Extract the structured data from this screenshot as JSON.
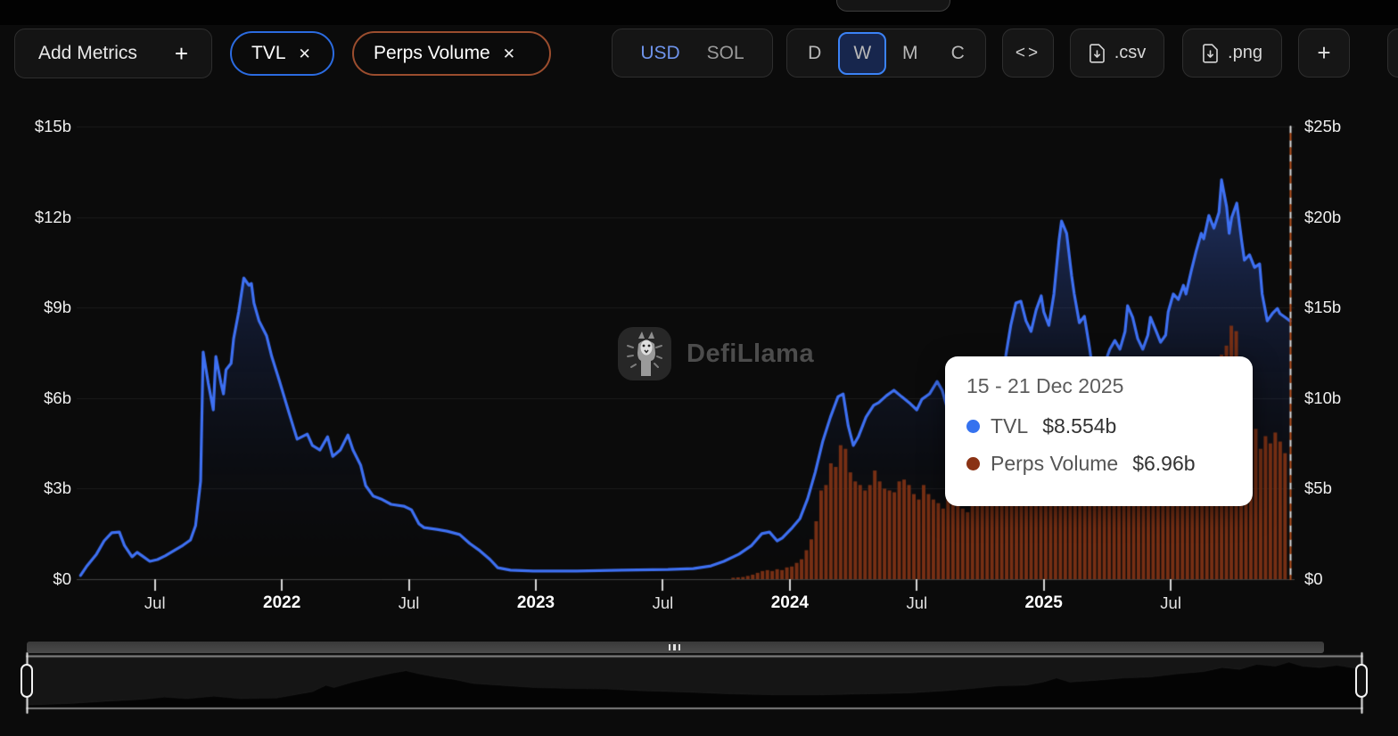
{
  "header": {
    "tab_notch": true
  },
  "toolbar": {
    "add_metrics": {
      "label": "Add Metrics",
      "plus": "+"
    },
    "metric_pills": [
      {
        "label": "TVL",
        "close": "✕",
        "color": "#2b6be0"
      },
      {
        "label": "Perps Volume",
        "close": "✕",
        "color": "#9b4d2e"
      }
    ],
    "currency": {
      "options": [
        "USD",
        "SOL"
      ],
      "selected": "USD",
      "selected_color": "#6e93ea"
    },
    "interval": {
      "options": [
        "D",
        "W",
        "M",
        "C"
      ],
      "selected": "W",
      "selected_color": "#3b82f6"
    },
    "embed_label": "<>",
    "downloads": [
      {
        "label": ".csv"
      },
      {
        "label": ".png"
      }
    ],
    "add_chart_label": "+"
  },
  "watermark": {
    "text": "DefiLlama"
  },
  "tooltip": {
    "date_range": "15 - 21 Dec 2025",
    "rows": [
      {
        "label": "TVL",
        "value": "$8.554b",
        "color": "#3572ef"
      },
      {
        "label": "Perps Volume",
        "value": "$6.96b",
        "color": "#8a3214"
      }
    ]
  },
  "chart_data": {
    "type": "mixed",
    "x_unit": "decimal_year",
    "x_range": [
      2021.206,
      2025.97
    ],
    "grid": true,
    "left_axis": {
      "range": [
        0,
        15
      ],
      "ticks": [
        {
          "v": 0,
          "label": "$0"
        },
        {
          "v": 3,
          "label": "$3b"
        },
        {
          "v": 6,
          "label": "$6b"
        },
        {
          "v": 9,
          "label": "$9b"
        },
        {
          "v": 12,
          "label": "$12b"
        },
        {
          "v": 15,
          "label": "$15b"
        }
      ]
    },
    "right_axis": {
      "range": [
        0,
        25
      ],
      "ticks": [
        {
          "v": 0,
          "label": "$0"
        },
        {
          "v": 5,
          "label": "$5b"
        },
        {
          "v": 10,
          "label": "$10b"
        },
        {
          "v": 15,
          "label": "$15b"
        },
        {
          "v": 20,
          "label": "$20b"
        },
        {
          "v": 25,
          "label": "$25b"
        }
      ]
    },
    "x_ticks": [
      {
        "t": 2021.5,
        "label": "Jul",
        "bold": false
      },
      {
        "t": 2022.0,
        "label": "2022",
        "bold": true
      },
      {
        "t": 2022.5,
        "label": "Jul",
        "bold": false
      },
      {
        "t": 2023.0,
        "label": "2023",
        "bold": true
      },
      {
        "t": 2023.5,
        "label": "Jul",
        "bold": false
      },
      {
        "t": 2024.0,
        "label": "2024",
        "bold": true
      },
      {
        "t": 2024.5,
        "label": "Jul",
        "bold": false
      },
      {
        "t": 2025.0,
        "label": "2025",
        "bold": true
      },
      {
        "t": 2025.5,
        "label": "Jul",
        "bold": false
      }
    ],
    "series": [
      {
        "name": "TVL",
        "type": "line",
        "axis": "left",
        "color": "#3e70f2",
        "fill_top": "rgba(70,115,240,0.5)",
        "fill_mid": "rgba(42,72,160,0.22)",
        "fill_bottom": "rgba(10,15,30,0)",
        "points": [
          [
            2021.207,
            0.12
          ],
          [
            2021.23,
            0.41
          ],
          [
            2021.27,
            0.83
          ],
          [
            2021.3,
            1.27
          ],
          [
            2021.33,
            1.54
          ],
          [
            2021.36,
            1.56
          ],
          [
            2021.38,
            1.12
          ],
          [
            2021.41,
            0.74
          ],
          [
            2021.43,
            0.89
          ],
          [
            2021.45,
            0.77
          ],
          [
            2021.48,
            0.59
          ],
          [
            2021.51,
            0.65
          ],
          [
            2021.54,
            0.77
          ],
          [
            2021.58,
            0.97
          ],
          [
            2021.61,
            1.12
          ],
          [
            2021.64,
            1.3
          ],
          [
            2021.66,
            1.77
          ],
          [
            2021.68,
            3.25
          ],
          [
            2021.69,
            7.53
          ],
          [
            2021.71,
            6.5
          ],
          [
            2021.73,
            5.61
          ],
          [
            2021.74,
            7.38
          ],
          [
            2021.76,
            6.5
          ],
          [
            2021.77,
            6.14
          ],
          [
            2021.78,
            6.94
          ],
          [
            2021.8,
            7.15
          ],
          [
            2021.81,
            7.97
          ],
          [
            2021.83,
            8.86
          ],
          [
            2021.85,
            9.98
          ],
          [
            2021.87,
            9.74
          ],
          [
            2021.88,
            9.8
          ],
          [
            2021.89,
            9.15
          ],
          [
            2021.91,
            8.56
          ],
          [
            2021.94,
            8.06
          ],
          [
            2021.96,
            7.38
          ],
          [
            2021.99,
            6.58
          ],
          [
            2022.03,
            5.46
          ],
          [
            2022.06,
            4.64
          ],
          [
            2022.1,
            4.81
          ],
          [
            2022.12,
            4.43
          ],
          [
            2022.15,
            4.28
          ],
          [
            2022.18,
            4.72
          ],
          [
            2022.2,
            4.07
          ],
          [
            2022.23,
            4.28
          ],
          [
            2022.26,
            4.78
          ],
          [
            2022.28,
            4.28
          ],
          [
            2022.31,
            3.78
          ],
          [
            2022.33,
            3.1
          ],
          [
            2022.36,
            2.75
          ],
          [
            2022.39,
            2.66
          ],
          [
            2022.43,
            2.48
          ],
          [
            2022.48,
            2.42
          ],
          [
            2022.51,
            2.3
          ],
          [
            2022.54,
            1.83
          ],
          [
            2022.56,
            1.71
          ],
          [
            2022.61,
            1.65
          ],
          [
            2022.65,
            1.59
          ],
          [
            2022.7,
            1.48
          ],
          [
            2022.74,
            1.18
          ],
          [
            2022.78,
            0.94
          ],
          [
            2022.82,
            0.65
          ],
          [
            2022.85,
            0.38
          ],
          [
            2022.9,
            0.3
          ],
          [
            2022.99,
            0.27
          ],
          [
            2023.16,
            0.27
          ],
          [
            2023.34,
            0.3
          ],
          [
            2023.52,
            0.32
          ],
          [
            2023.62,
            0.35
          ],
          [
            2023.69,
            0.44
          ],
          [
            2023.74,
            0.59
          ],
          [
            2023.8,
            0.83
          ],
          [
            2023.85,
            1.12
          ],
          [
            2023.89,
            1.51
          ],
          [
            2023.92,
            1.56
          ],
          [
            2023.95,
            1.27
          ],
          [
            2023.97,
            1.36
          ],
          [
            2024.01,
            1.71
          ],
          [
            2024.04,
            2.01
          ],
          [
            2024.07,
            2.66
          ],
          [
            2024.1,
            3.54
          ],
          [
            2024.13,
            4.58
          ],
          [
            2024.16,
            5.37
          ],
          [
            2024.19,
            6.05
          ],
          [
            2024.21,
            6.14
          ],
          [
            2024.23,
            5.08
          ],
          [
            2024.25,
            4.43
          ],
          [
            2024.27,
            4.72
          ],
          [
            2024.3,
            5.37
          ],
          [
            2024.33,
            5.76
          ],
          [
            2024.35,
            5.85
          ],
          [
            2024.38,
            6.08
          ],
          [
            2024.41,
            6.26
          ],
          [
            2024.44,
            6.05
          ],
          [
            2024.47,
            5.85
          ],
          [
            2024.5,
            5.61
          ],
          [
            2024.52,
            5.96
          ],
          [
            2024.55,
            6.14
          ],
          [
            2024.58,
            6.55
          ],
          [
            2024.6,
            6.26
          ],
          [
            2024.62,
            5.67
          ],
          [
            2024.64,
            5.46
          ],
          [
            2024.67,
            5.85
          ],
          [
            2024.7,
            6.26
          ],
          [
            2024.72,
            6.5
          ],
          [
            2024.74,
            6.14
          ],
          [
            2024.76,
            5.85
          ],
          [
            2024.78,
            6.2
          ],
          [
            2024.81,
            6.79
          ],
          [
            2024.83,
            6.55
          ],
          [
            2024.85,
            7.38
          ],
          [
            2024.87,
            8.41
          ],
          [
            2024.89,
            9.15
          ],
          [
            2024.91,
            9.21
          ],
          [
            2024.93,
            8.56
          ],
          [
            2024.95,
            8.21
          ],
          [
            2024.97,
            8.92
          ],
          [
            2024.99,
            9.39
          ],
          [
            2025.0,
            8.86
          ],
          [
            2025.02,
            8.41
          ],
          [
            2025.04,
            9.45
          ],
          [
            2025.06,
            11.22
          ],
          [
            2025.07,
            11.87
          ],
          [
            2025.09,
            11.46
          ],
          [
            2025.11,
            10.04
          ],
          [
            2025.12,
            9.45
          ],
          [
            2025.14,
            8.5
          ],
          [
            2025.16,
            8.71
          ],
          [
            2025.18,
            7.68
          ],
          [
            2025.19,
            7.09
          ],
          [
            2025.21,
            6.73
          ],
          [
            2025.23,
            6.64
          ],
          [
            2025.25,
            7.38
          ],
          [
            2025.26,
            7.62
          ],
          [
            2025.28,
            7.91
          ],
          [
            2025.3,
            7.62
          ],
          [
            2025.32,
            8.21
          ],
          [
            2025.33,
            9.06
          ],
          [
            2025.35,
            8.68
          ],
          [
            2025.37,
            7.97
          ],
          [
            2025.39,
            7.62
          ],
          [
            2025.41,
            8.09
          ],
          [
            2025.42,
            8.68
          ],
          [
            2025.44,
            8.27
          ],
          [
            2025.46,
            7.85
          ],
          [
            2025.48,
            8.09
          ],
          [
            2025.49,
            8.86
          ],
          [
            2025.51,
            9.45
          ],
          [
            2025.53,
            9.27
          ],
          [
            2025.55,
            9.74
          ],
          [
            2025.56,
            9.45
          ],
          [
            2025.58,
            10.19
          ],
          [
            2025.6,
            10.87
          ],
          [
            2025.62,
            11.46
          ],
          [
            2025.63,
            11.28
          ],
          [
            2025.65,
            12.05
          ],
          [
            2025.67,
            11.63
          ],
          [
            2025.69,
            12.16
          ],
          [
            2025.7,
            13.23
          ],
          [
            2025.72,
            12.34
          ],
          [
            2025.73,
            11.46
          ],
          [
            2025.74,
            11.99
          ],
          [
            2025.76,
            12.46
          ],
          [
            2025.78,
            11.16
          ],
          [
            2025.79,
            10.57
          ],
          [
            2025.81,
            10.75
          ],
          [
            2025.83,
            10.33
          ],
          [
            2025.85,
            10.45
          ],
          [
            2025.86,
            9.45
          ],
          [
            2025.88,
            8.56
          ],
          [
            2025.9,
            8.8
          ],
          [
            2025.92,
            8.97
          ],
          [
            2025.93,
            8.8
          ],
          [
            2025.95,
            8.68
          ],
          [
            2025.97,
            8.554
          ]
        ]
      },
      {
        "name": "Perps Volume",
        "type": "bar",
        "axis": "right",
        "color": "#7c3115",
        "start": 2023.77,
        "interval_years": 0.01923,
        "values": [
          0.08,
          0.1,
          0.12,
          0.18,
          0.25,
          0.35,
          0.45,
          0.5,
          0.45,
          0.55,
          0.5,
          0.65,
          0.7,
          0.9,
          1.1,
          1.6,
          2.2,
          3.2,
          4.9,
          5.2,
          6.4,
          6.2,
          7.4,
          7.2,
          5.9,
          5.4,
          5.2,
          4.9,
          5.2,
          6.0,
          5.4,
          5.0,
          4.9,
          4.8,
          5.4,
          5.5,
          5.2,
          4.7,
          4.4,
          5.2,
          4.7,
          4.4,
          4.2,
          3.9,
          4.5,
          5.0,
          4.3,
          3.9,
          3.7,
          4.1,
          4.6,
          5.0,
          5.6,
          6.2,
          6.8,
          7.4,
          6.9,
          7.6,
          8.2,
          7.7,
          7.1,
          7.8,
          8.4,
          7.9,
          7.3,
          8.8,
          9.6,
          8.9,
          7.9,
          7.1,
          6.4,
          5.8,
          5.3,
          4.9,
          5.6,
          6.1,
          5.7,
          5.2,
          5.8,
          6.4,
          6.0,
          5.5,
          6.2,
          6.8,
          6.3,
          5.9,
          6.6,
          7.2,
          6.7,
          7.4,
          7.0,
          8.9,
          9.6,
          9.1,
          9.9,
          10.6,
          10.0,
          11.1,
          11.9,
          11.3,
          12.4,
          12.9,
          14.0,
          13.7,
          12.1,
          9.0,
          8.8,
          8.3,
          7.2,
          7.9,
          7.5,
          8.1,
          7.6,
          6.96
        ]
      }
    ],
    "current_marker": {
      "t": 2025.97,
      "dash_colors": [
        "#dcdcdc",
        "#b5521f"
      ]
    }
  },
  "brush": {
    "profile": [
      [
        0.0,
        0.035
      ],
      [
        0.033,
        0.07
      ],
      [
        0.06,
        0.12
      ],
      [
        0.087,
        0.16
      ],
      [
        0.103,
        0.21
      ],
      [
        0.12,
        0.175
      ],
      [
        0.14,
        0.23
      ],
      [
        0.16,
        0.175
      ],
      [
        0.187,
        0.19
      ],
      [
        0.214,
        0.33
      ],
      [
        0.224,
        0.47
      ],
      [
        0.23,
        0.42
      ],
      [
        0.244,
        0.54
      ],
      [
        0.26,
        0.65
      ],
      [
        0.274,
        0.74
      ],
      [
        0.284,
        0.79
      ],
      [
        0.294,
        0.72
      ],
      [
        0.307,
        0.65
      ],
      [
        0.32,
        0.6
      ],
      [
        0.334,
        0.51
      ],
      [
        0.354,
        0.47
      ],
      [
        0.38,
        0.42
      ],
      [
        0.407,
        0.4
      ],
      [
        0.434,
        0.39
      ],
      [
        0.46,
        0.35
      ],
      [
        0.494,
        0.32
      ],
      [
        0.527,
        0.28
      ],
      [
        0.56,
        0.26
      ],
      [
        0.594,
        0.26
      ],
      [
        0.627,
        0.28
      ],
      [
        0.66,
        0.3
      ],
      [
        0.688,
        0.35
      ],
      [
        0.708,
        0.4
      ],
      [
        0.728,
        0.46
      ],
      [
        0.748,
        0.47
      ],
      [
        0.761,
        0.54
      ],
      [
        0.771,
        0.63
      ],
      [
        0.781,
        0.54
      ],
      [
        0.801,
        0.58
      ],
      [
        0.821,
        0.63
      ],
      [
        0.841,
        0.65
      ],
      [
        0.861,
        0.72
      ],
      [
        0.881,
        0.77
      ],
      [
        0.895,
        0.86
      ],
      [
        0.908,
        0.82
      ],
      [
        0.921,
        0.93
      ],
      [
        0.935,
        0.89
      ],
      [
        0.945,
        0.98
      ],
      [
        0.955,
        0.89
      ],
      [
        0.968,
        0.86
      ],
      [
        0.981,
        0.91
      ],
      [
        1.0,
        0.82
      ]
    ]
  }
}
